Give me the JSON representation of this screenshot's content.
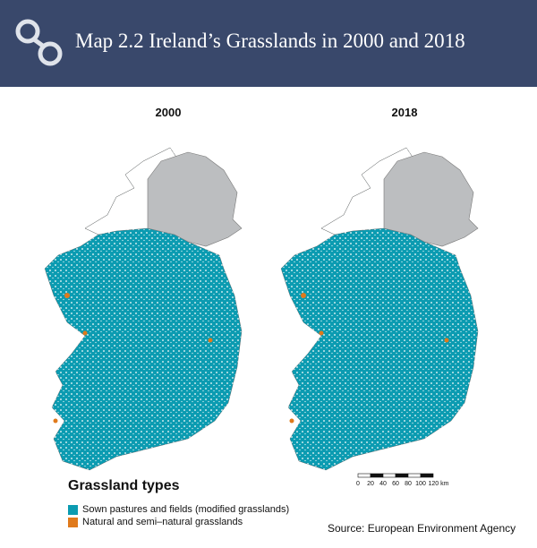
{
  "header": {
    "title": "Map 2.2 Ireland’s Grasslands in 2000 and 2018"
  },
  "maps": [
    {
      "label": "2000"
    },
    {
      "label": "2018"
    }
  ],
  "legend": {
    "title": "Grassland types",
    "items": [
      {
        "name": "Sown pastures and fields (modified grasslands)",
        "color": "#0b9bb1"
      },
      {
        "name": "Natural and semi–natural grasslands",
        "color": "#e07a1c"
      }
    ]
  },
  "scale_bar": {
    "labels": [
      "0",
      "20",
      "40",
      "60",
      "80",
      "100",
      "120 km"
    ]
  },
  "source": "Source: European Environment Agency"
}
